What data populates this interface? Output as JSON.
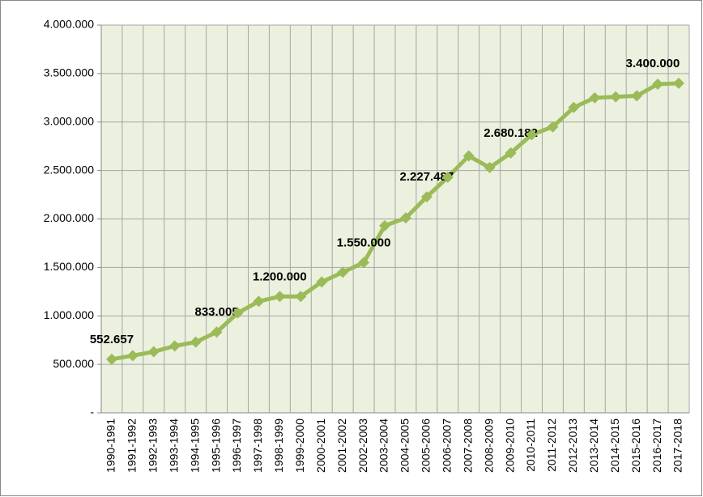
{
  "chart_data": {
    "type": "line",
    "categories": [
      "1990-1991",
      "1991-1992",
      "1992-1993",
      "1993-1994",
      "1994-1995",
      "1995-1996",
      "1996-1997",
      "1997-1998",
      "1998-1999",
      "1999-2000",
      "2000-2001",
      "2001-2002",
      "2002-2003",
      "2003-2004",
      "2004-2005",
      "2005-2006",
      "2006-2007",
      "2007-2008",
      "2008-2009",
      "2009-2010",
      "2010-2011",
      "2011-2012",
      "2012-2013",
      "2013-2014",
      "2014-2015",
      "2015-2016",
      "2016-2017",
      "2017-2018"
    ],
    "series": [
      {
        "color": "#9bbb59",
        "values": [
          552657,
          590000,
          630000,
          690000,
          730000,
          833005,
          1030000,
          1150000,
          1200000,
          1200000,
          1350000,
          1450000,
          1550000,
          1930000,
          2010000,
          2227487,
          2430000,
          2650000,
          2530000,
          2680182,
          2870000,
          2950000,
          3150000,
          3250000,
          3260000,
          3270000,
          3390000,
          3400000
        ],
        "value_labels": [
          "552.657",
          null,
          null,
          null,
          null,
          "833.005",
          null,
          null,
          "1.200.000",
          null,
          null,
          null,
          "1.550.000",
          null,
          null,
          "2.227.487",
          null,
          null,
          null,
          "2.680.182",
          null,
          null,
          null,
          null,
          null,
          null,
          null,
          "3.400.000"
        ]
      }
    ],
    "ylim": [
      0,
      4000000
    ],
    "yticks": [
      {
        "value": 0,
        "label": "-"
      },
      {
        "value": 500000,
        "label": "500.000"
      },
      {
        "value": 1000000,
        "label": "1.000.000"
      },
      {
        "value": 1500000,
        "label": "1.500.000"
      },
      {
        "value": 2000000,
        "label": "2.000.000"
      },
      {
        "value": 2500000,
        "label": "2.500.000"
      },
      {
        "value": 3000000,
        "label": "3.000.000"
      },
      {
        "value": 3500000,
        "label": "3.500.000"
      },
      {
        "value": 4000000,
        "label": "4.000.000"
      }
    ],
    "grid": true
  }
}
